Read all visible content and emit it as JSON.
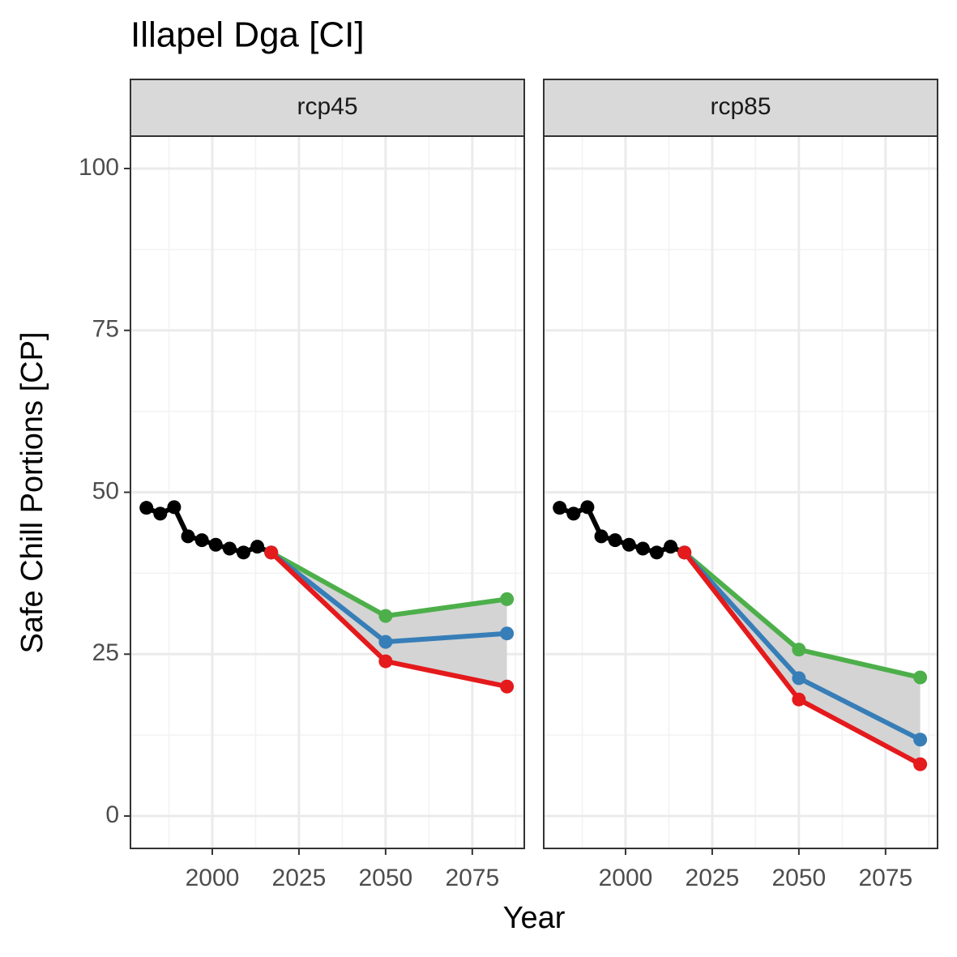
{
  "title": "Illapel Dga [CI]",
  "x_label": "Year",
  "y_label": "Safe Chill Portions [CP]",
  "chart_data": [
    {
      "type": "line",
      "panel": "rcp45",
      "xlim": [
        1976.4,
        2090
      ],
      "ylim": [
        -5,
        105
      ],
      "xticks": [
        2000,
        2025,
        2050,
        2075
      ],
      "yticks": [
        0,
        25,
        50,
        75,
        100
      ],
      "grid": true,
      "ribbon_color": "#d4d4d4",
      "series": [
        {
          "color": "#000000",
          "x": [
            1981,
            1985,
            1989,
            1993,
            1997,
            2001,
            2005,
            2009,
            2013,
            2017
          ],
          "values": [
            47.6,
            46.7,
            47.7,
            43.2,
            42.6,
            41.9,
            41.3,
            40.7,
            41.6,
            40.7
          ]
        },
        {
          "color": "#4daf4a",
          "x": [
            2017,
            2050,
            2085
          ],
          "values": [
            40.7,
            30.9,
            33.5
          ]
        },
        {
          "color": "#377eb8",
          "x": [
            2017,
            2050,
            2085
          ],
          "values": [
            40.7,
            26.9,
            28.2
          ]
        },
        {
          "color": "#e41a1c",
          "x": [
            2017,
            2050,
            2085
          ],
          "values": [
            40.7,
            23.9,
            20.0
          ]
        }
      ]
    },
    {
      "type": "line",
      "panel": "rcp85",
      "xlim": [
        1976.4,
        2090
      ],
      "ylim": [
        -5,
        105
      ],
      "xticks": [
        2000,
        2025,
        2050,
        2075
      ],
      "yticks": [
        0,
        25,
        50,
        75,
        100
      ],
      "grid": true,
      "ribbon_color": "#d4d4d4",
      "series": [
        {
          "color": "#000000",
          "x": [
            1981,
            1985,
            1989,
            1993,
            1997,
            2001,
            2005,
            2009,
            2013,
            2017
          ],
          "values": [
            47.6,
            46.7,
            47.7,
            43.2,
            42.6,
            41.9,
            41.3,
            40.7,
            41.6,
            40.7
          ]
        },
        {
          "color": "#4daf4a",
          "x": [
            2017,
            2050,
            2085
          ],
          "values": [
            40.7,
            25.7,
            21.4
          ]
        },
        {
          "color": "#377eb8",
          "x": [
            2017,
            2050,
            2085
          ],
          "values": [
            40.7,
            21.3,
            11.8
          ]
        },
        {
          "color": "#e41a1c",
          "x": [
            2017,
            2050,
            2085
          ],
          "values": [
            40.7,
            18.0,
            8.0
          ]
        }
      ]
    }
  ]
}
